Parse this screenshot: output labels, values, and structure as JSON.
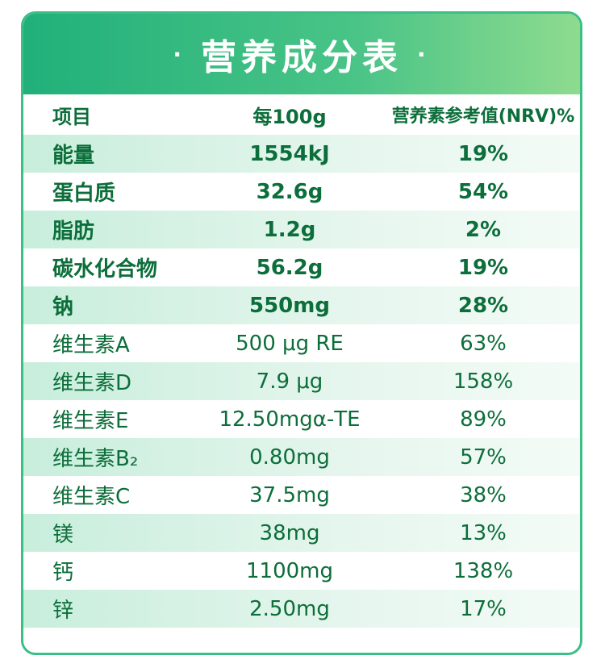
{
  "title": "营养成分表",
  "title_dot": "·",
  "columns": [
    "项目",
    "每100g",
    "营养素参考值(NRV)%"
  ],
  "rows": [
    {
      "item": "能量",
      "per100g": "1554kJ",
      "nrv": "19%"
    },
    {
      "item": "蛋白质",
      "per100g": "32.6g",
      "nrv": "54%"
    },
    {
      "item": "脂肪",
      "per100g": "1.2g",
      "nrv": "2%"
    },
    {
      "item": "碳水化合物",
      "per100g": "56.2g",
      "nrv": "19%"
    },
    {
      "item": "钠",
      "per100g": "550mg",
      "nrv": "28%"
    },
    {
      "item": "维生素A",
      "per100g": "500 μg RE",
      "nrv": "63%"
    },
    {
      "item": "维生素D",
      "per100g": "7.9 μg",
      "nrv": "158%"
    },
    {
      "item": "维生素E",
      "per100g": "12.50mgα-TE",
      "nrv": "89%"
    },
    {
      "item": "维生素B₂",
      "per100g": "0.80mg",
      "nrv": "57%"
    },
    {
      "item": "维生素C",
      "per100g": "37.5mg",
      "nrv": "38%"
    },
    {
      "item": "镁",
      "per100g": "38mg",
      "nrv": "13%"
    },
    {
      "item": "钙",
      "per100g": "1100mg",
      "nrv": "138%"
    },
    {
      "item": "锌",
      "per100g": "2.50mg",
      "nrv": "17%"
    }
  ],
  "colors": {
    "green": "#21b07a",
    "text": "#0c6e3a",
    "row_alt": "#c8eedc"
  }
}
